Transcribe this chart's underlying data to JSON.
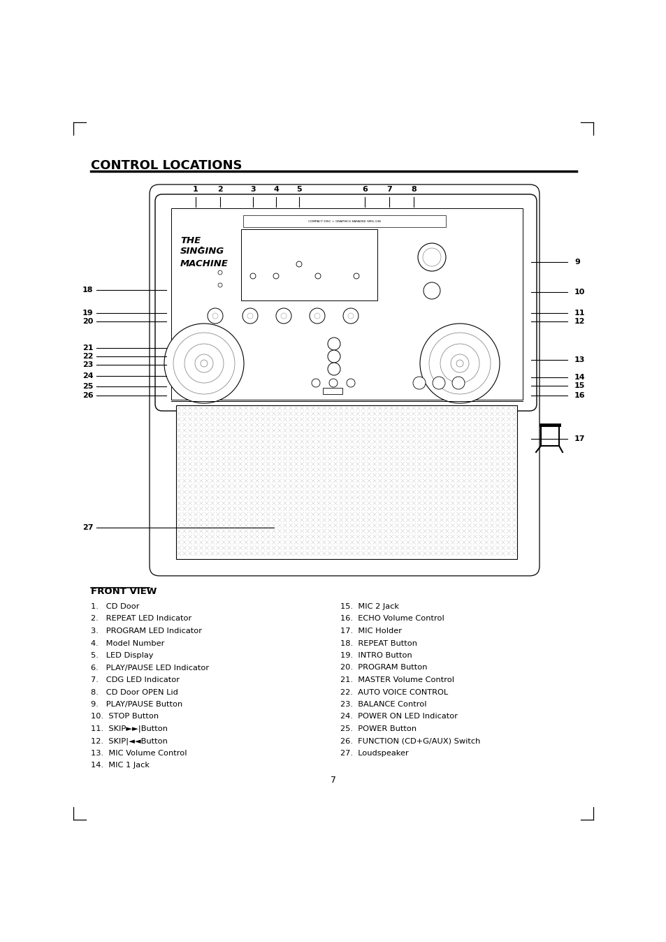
{
  "title": "CONTROL LOCATIONS",
  "bg_color": "#ffffff",
  "text_color": "#000000",
  "front_view_label": "FRONT VIEW",
  "left_items": [
    "1.   CD Door",
    "2.   REPEAT LED Indicator",
    "3.   PROGRAM LED Indicator",
    "4.   Model Number",
    "5.   LED Display",
    "6.   PLAY/PAUSE LED Indicator",
    "7.   CDG LED Indicator",
    "8.   CD Door OPEN Lid",
    "9.   PLAY/PAUSE Button",
    "10.  STOP Button",
    "11.  SKIP►►|Button",
    "12.  SKIP|◄◄Button",
    "13.  MIC Volume Control",
    "14.  MIC 1 Jack"
  ],
  "right_items": [
    "15.  MIC 2 Jack",
    "16.  ECHO Volume Control",
    "17.  MIC Holder",
    "18.  REPEAT Button",
    "19.  INTRO Button",
    "20.  PROGRAM Button",
    "21.  MASTER Volume Control",
    "22.  AUTO VOICE CONTROL",
    "23.  BALANCE Control",
    "24.  POWER ON LED Indicator",
    "25.  POWER Button",
    "26.  FUNCTION (CD+G/AUX) Switch",
    "27.  Loudspeaker"
  ],
  "page_number": "7",
  "top_numbers": [
    "1",
    "2",
    "3",
    "4",
    "5",
    "6",
    "7",
    "8"
  ],
  "top_x": [
    280,
    315,
    362,
    395,
    428,
    522,
    557,
    592
  ],
  "right_labels": [
    "9",
    "10",
    "11",
    "12",
    "13",
    "14",
    "15",
    "16",
    "17"
  ],
  "right_y": [
    375,
    418,
    448,
    460,
    515,
    540,
    552,
    566,
    628
  ],
  "left_labels": [
    "18",
    "19",
    "20",
    "21",
    "22",
    "23",
    "24",
    "25",
    "26"
  ],
  "left_y": [
    415,
    448,
    460,
    498,
    510,
    522,
    538,
    553,
    566
  ]
}
